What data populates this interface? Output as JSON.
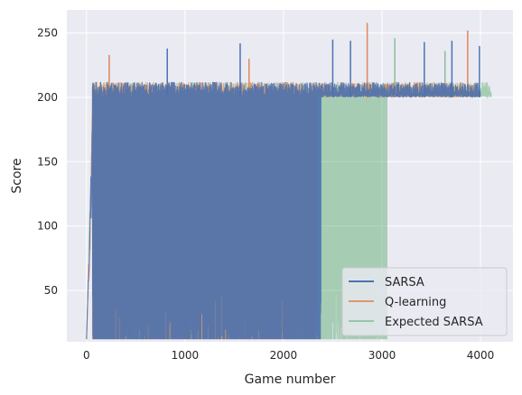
{
  "chart_data": {
    "type": "line",
    "title": "",
    "xlabel": "Game number",
    "ylabel": "Score",
    "xlim": [
      -200,
      4330
    ],
    "ylim": [
      10,
      268
    ],
    "xticks": [
      0,
      1000,
      2000,
      3000,
      4000
    ],
    "yticks": [
      50,
      100,
      150,
      200,
      250
    ],
    "xtick_labels": [
      "0",
      "1000",
      "2000",
      "3000",
      "4000"
    ],
    "ytick_labels": [
      "50",
      "100",
      "150",
      "200",
      "250"
    ],
    "grid": true,
    "legend_position": "bottom-right",
    "series": [
      {
        "name": "SARSA",
        "color": "#4c72b0",
        "opacity": 0.9,
        "start": 0,
        "rise_end": 60,
        "dense_start": 60,
        "dense_end": 2380,
        "plateau_end": 4000,
        "low": 12,
        "plateau": 200,
        "noise_top": 212,
        "spikes": [
          [
            820,
            238
          ],
          [
            1560,
            242
          ],
          [
            2500,
            245
          ],
          [
            2680,
            244
          ],
          [
            3430,
            243
          ],
          [
            3710,
            244
          ],
          [
            3990,
            240
          ]
        ]
      },
      {
        "name": "Q-learning",
        "color": "#dd8452",
        "opacity": 0.75,
        "start": 0,
        "rise_end": 60,
        "dense_start": 60,
        "dense_end": 2340,
        "plateau_end": 3980,
        "low": 12,
        "plateau": 200,
        "noise_top": 212,
        "spikes": [
          [
            230,
            233
          ],
          [
            1650,
            230
          ],
          [
            2850,
            258
          ],
          [
            3870,
            252
          ]
        ]
      },
      {
        "name": "Expected SARSA",
        "color": "#55a868",
        "opacity": 0.45,
        "start": 0,
        "rise_end": 60,
        "dense_start": 60,
        "dense_end": 3050,
        "plateau_end": 4110,
        "low": 12,
        "plateau": 200,
        "noise_top": 212,
        "spikes": [
          [
            3130,
            246
          ],
          [
            3640,
            236
          ]
        ]
      }
    ]
  }
}
